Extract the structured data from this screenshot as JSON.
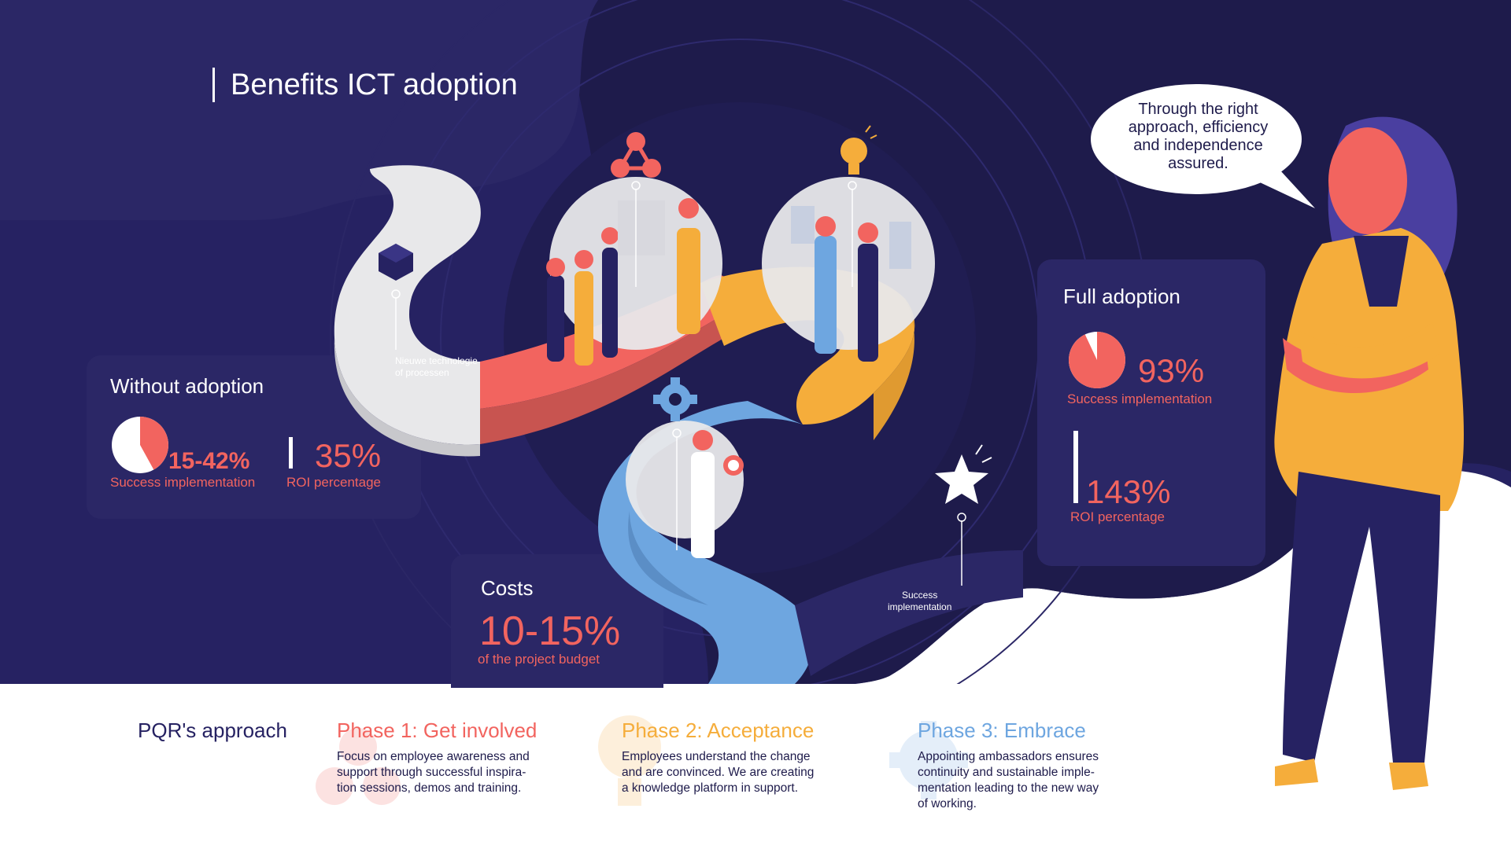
{
  "title": "Benefits ICT adoption",
  "colors": {
    "navy": "#262262",
    "dark_navy": "#1e1b4b",
    "coral": "#f2645f",
    "orange": "#f5ad3b",
    "blue": "#6ea6e0",
    "light_gray": "#e8e8ea",
    "white": "#ffffff"
  },
  "without_adoption": {
    "heading": "Without adoption",
    "success_value": "15-42%",
    "success_label": "Success implementation",
    "success_fraction": 0.42,
    "roi_value": "35%",
    "roi_label": "ROI percentage"
  },
  "costs": {
    "heading": "Costs",
    "value": "10-15%",
    "label": "of the project budget"
  },
  "full_adoption": {
    "heading": "Full adoption",
    "success_value": "93%",
    "success_label": "Success implementation",
    "success_fraction": 0.93,
    "roi_value": "143%",
    "roi_label": "ROI percentage"
  },
  "path_labels": {
    "new_tech_line1": "Nieuwe technologie",
    "new_tech_line2": "of processen",
    "success_line1": "Success",
    "success_line2": "implementation"
  },
  "speech_bubble": {
    "line1": "Through the right",
    "line2": "approach, efficiency",
    "line3": "and independence",
    "line4": "assured."
  },
  "approach": {
    "heading": "PQR's approach",
    "phases": [
      {
        "title": "Phase 1: Get involved",
        "lines": [
          "Focus on employee awareness and",
          "support through successful inspira-",
          "tion sessions, demos and training."
        ],
        "color": "#f2645f",
        "icon": "network-icon"
      },
      {
        "title": "Phase 2: Acceptance",
        "lines": [
          "Employees understand the change",
          "and are convinced. We are creating",
          "a knowledge platform in support."
        ],
        "color": "#f5ad3b",
        "icon": "lightbulb-icon"
      },
      {
        "title": "Phase 3: Embrace",
        "lines": [
          "Appointing ambassadors ensures",
          "continuity and sustainable imple-",
          "mentation leading to the new way",
          "of working."
        ],
        "color": "#6ea6e0",
        "icon": "gear-icon"
      }
    ]
  },
  "icons": [
    "cube-icon",
    "network-icon",
    "lightbulb-icon",
    "gear-icon",
    "star-icon"
  ]
}
